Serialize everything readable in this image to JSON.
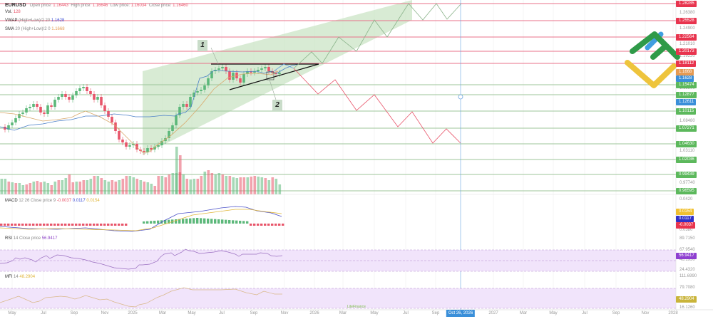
{
  "header": {
    "symbol": "EURUSD",
    "open_label": "Open price:",
    "open": "1.16443",
    "high_label": "High price:",
    "high": "1.16646",
    "low_label": "Low price:",
    "low": "1.16034",
    "close_label": "Close price:",
    "close": "1.16460",
    "vol_label": "Vol.",
    "vol": "128"
  },
  "indicators": {
    "vwap": {
      "name": "VWAP",
      "params": "(High+Low)/2 20",
      "value": "1.1628"
    },
    "sma": {
      "name": "SMA",
      "params": "20 (High+Low)/2 0",
      "value": "1.1668"
    },
    "macd": {
      "name": "MACD",
      "params": "12 26 Close price 9",
      "v1": "-0.0037",
      "v2": "0.0117",
      "v3": "0.0154"
    },
    "rsi": {
      "name": "RSI",
      "params": "14 Close price",
      "value": "56.9417"
    },
    "mfi": {
      "name": "MFI",
      "params": "14",
      "value": "48.2904"
    }
  },
  "colors": {
    "up": "#5cb87a",
    "down": "#e8556a",
    "res_line": "#e8708a",
    "sup_line": "#9dc49a",
    "channel": "#c7e3c2",
    "vwap": "#4a7fc8",
    "sma": "#d9a86a",
    "rsi": "#9a6ec0",
    "mfi": "#d9b888",
    "pane_bg": "#f1e4fb"
  },
  "price_axis": {
    "tags": [
      {
        "label": "1.28285",
        "y": 5,
        "color": "#e8344e"
      },
      {
        "label": "1.25528",
        "y": 29,
        "color": "#e8344e"
      },
      {
        "label": "1.22564",
        "y": 52,
        "color": "#e8344e"
      },
      {
        "label": "1.20173",
        "y": 72,
        "color": "#e8344e"
      },
      {
        "label": "1.18112",
        "y": 89,
        "color": "#e8344e"
      },
      {
        "label": "1.1668",
        "y": 101,
        "color": "#e59a52"
      },
      {
        "label": "1.1628",
        "y": 110,
        "color": "#3a8fd9"
      },
      {
        "label": "1.15474",
        "y": 119,
        "color": "#5cb85c"
      },
      {
        "label": "1.12877",
        "y": 133,
        "color": "#5cb85c"
      },
      {
        "label": "1.12611",
        "y": 143,
        "color": "#3a8fd9"
      },
      {
        "label": "1.10115",
        "y": 156,
        "color": "#5cb85c"
      },
      {
        "label": "1.07271",
        "y": 180,
        "color": "#5cb85c"
      },
      {
        "label": "1.04630",
        "y": 202,
        "color": "#5cb85c"
      },
      {
        "label": "1.02036",
        "y": 224,
        "color": "#5cb85c"
      },
      {
        "label": "0.99439",
        "y": 245,
        "color": "#5cb85c"
      },
      {
        "label": "0.96595",
        "y": 268,
        "color": "#5cb85c"
      }
    ],
    "ticks": [
      {
        "label": "1.26380",
        "y": 19
      },
      {
        "label": "1.24900",
        "y": 41
      },
      {
        "label": "1.21010",
        "y": 63
      },
      {
        "label": "1.19220",
        "y": 80
      },
      {
        "label": "1.13800",
        "y": 125
      },
      {
        "label": "1.08480",
        "y": 171
      },
      {
        "label": "1.03110",
        "y": 213
      },
      {
        "label": "1.01320",
        "y": 229
      },
      {
        "label": "0.97740",
        "y": 258
      }
    ],
    "macd_ticks": [
      {
        "label": "0.0420",
        "y": 281
      },
      {
        "label": "0.0380",
        "y": 324
      }
    ],
    "macd_tags": [
      {
        "label": "0.0154",
        "y": 297,
        "color": "#f0c030"
      },
      {
        "label": "0.0117",
        "y": 307,
        "color": "#3030c8"
      },
      {
        "label": "-0.0037",
        "y": 316,
        "color": "#e8344e"
      }
    ],
    "rsi_ticks": [
      {
        "label": "89.7150",
        "y": 336
      },
      {
        "label": "67.9540",
        "y": 352
      },
      {
        "label": "46.1930",
        "y": 366
      },
      {
        "label": "24.4320",
        "y": 380
      }
    ],
    "rsi_tag": {
      "label": "56.9417",
      "y": 359,
      "color": "#8e3fd0"
    },
    "mfi_ticks": [
      {
        "label": "111.6990",
        "y": 389
      },
      {
        "label": "79.7080",
        "y": 405
      },
      {
        "label": "16.1260",
        "y": 433
      }
    ],
    "mfi_tag": {
      "label": "48.2904",
      "y": 420,
      "color": "#c9b43a"
    }
  },
  "time_axis": {
    "labels": [
      {
        "label": "May",
        "x": 17
      },
      {
        "label": "Jul",
        "x": 61
      },
      {
        "label": "Sep",
        "x": 104
      },
      {
        "label": "Nov",
        "x": 147
      },
      {
        "label": "2025",
        "x": 186
      },
      {
        "label": "Mar",
        "x": 228
      },
      {
        "label": "May",
        "x": 269
      },
      {
        "label": "Jul",
        "x": 311
      },
      {
        "label": "Sep",
        "x": 356
      },
      {
        "label": "Nov",
        "x": 399
      },
      {
        "label": "2026",
        "x": 441
      },
      {
        "label": "Mar",
        "x": 481
      },
      {
        "label": "May",
        "x": 525
      },
      {
        "label": "Jul",
        "x": 569
      },
      {
        "label": "Sep",
        "x": 611
      },
      {
        "label": "2027",
        "x": 692
      },
      {
        "label": "Mar",
        "x": 734
      },
      {
        "label": "May",
        "x": 776
      },
      {
        "label": "Jul",
        "x": 820
      },
      {
        "label": "Sep",
        "x": 864
      },
      {
        "label": "Nov",
        "x": 905
      },
      {
        "label": "2028",
        "x": 944
      }
    ],
    "crosshair": {
      "label": "Oct 26, 2026",
      "x": 646
    }
  },
  "annotations": {
    "tag1": "1",
    "tag2": "2",
    "watermark": "LiteFinance"
  },
  "chart_data": {
    "type": "candlestick",
    "title": "EURUSD",
    "timeframe_labels": [
      "May",
      "Jul",
      "Sep",
      "Nov",
      "2025",
      "Mar",
      "May",
      "Jul",
      "Sep",
      "Nov",
      "2026",
      "Mar",
      "May",
      "Jul",
      "Sep",
      "Oct 26, 2026",
      "2027",
      "Mar",
      "May",
      "Jul",
      "Sep",
      "Nov",
      "2028"
    ],
    "ohlc_last": {
      "open": 1.16443,
      "high": 1.16646,
      "low": 1.16034,
      "close": 1.1646,
      "volume": 128
    },
    "resistance_levels": [
      1.28285,
      1.25528,
      1.22564,
      1.20173,
      1.18112
    ],
    "support_levels": [
      1.15474,
      1.12877,
      1.10115,
      1.07271,
      1.0463,
      1.02036,
      0.99439,
      0.96595
    ],
    "vwap": 1.1628,
    "sma20": 1.1668,
    "macd": {
      "macd": 0.0117,
      "signal": 0.0154,
      "histogram": -0.0037
    },
    "rsi14": 56.9417,
    "mfi14": 48.2904,
    "bullish_scenario_targets": [
      1.18112,
      1.20173,
      1.22564,
      1.25528,
      1.28285
    ],
    "bearish_scenario_targets": [
      1.12877,
      1.10115,
      1.07271,
      1.0463
    ],
    "pattern": "ascending triangle inside rising channel",
    "ylim": [
      0.96,
      1.29
    ]
  }
}
